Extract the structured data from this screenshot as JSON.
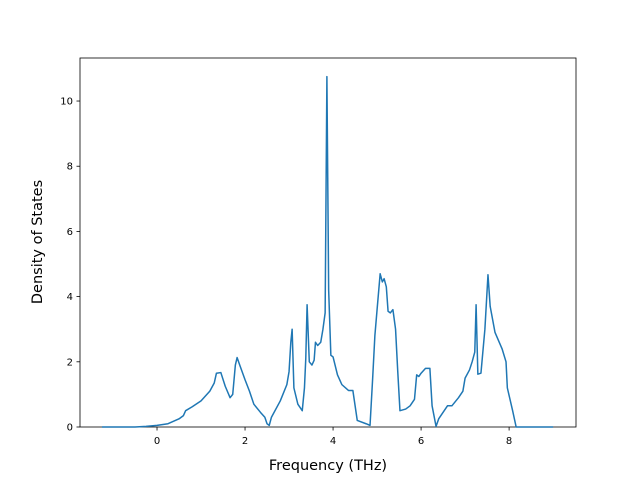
{
  "chart_data": {
    "type": "line",
    "xlabel": "Frequency (THz)",
    "ylabel": "Density of States",
    "color": "#1f77b4",
    "xlim": [
      -1.75,
      9.52
    ],
    "ylim": [
      0,
      11.32
    ],
    "xticks": [
      0,
      2,
      4,
      6,
      8
    ],
    "yticks": [
      0,
      2,
      4,
      6,
      8,
      10
    ],
    "x": [
      -1.25,
      -0.5,
      -0.25,
      0,
      0.25,
      0.5,
      0.6,
      0.65,
      0.8,
      1.0,
      1.2,
      1.3,
      1.35,
      1.45,
      1.55,
      1.66,
      1.72,
      1.78,
      1.82,
      1.88,
      2.0,
      2.1,
      2.2,
      2.35,
      2.45,
      2.5,
      2.55,
      2.6,
      2.8,
      2.95,
      3.0,
      3.04,
      3.07,
      3.11,
      3.2,
      3.3,
      3.35,
      3.38,
      3.41,
      3.46,
      3.52,
      3.57,
      3.6,
      3.65,
      3.72,
      3.77,
      3.82,
      3.86,
      3.9,
      3.95,
      4.0,
      4.1,
      4.2,
      4.35,
      4.45,
      4.55,
      4.75,
      4.84,
      4.9,
      4.95,
      5.0,
      5.07,
      5.12,
      5.16,
      5.21,
      5.25,
      5.3,
      5.36,
      5.42,
      5.47,
      5.52,
      5.65,
      5.75,
      5.85,
      5.9,
      5.95,
      6.0,
      6.1,
      6.2,
      6.25,
      6.34,
      6.4,
      6.6,
      6.7,
      6.85,
      6.95,
      7.0,
      7.1,
      7.16,
      7.22,
      7.25,
      7.29,
      7.36,
      7.45,
      7.52,
      7.57,
      7.68,
      7.84,
      7.93,
      7.96,
      8.08,
      8.16,
      9.0
    ],
    "values": [
      0,
      0,
      0.02,
      0.05,
      0.1,
      0.25,
      0.35,
      0.5,
      0.62,
      0.8,
      1.1,
      1.35,
      1.65,
      1.67,
      1.25,
      0.9,
      1.0,
      1.9,
      2.13,
      1.9,
      1.45,
      1.1,
      0.7,
      0.45,
      0.3,
      0.1,
      0.05,
      0.3,
      0.8,
      1.3,
      1.7,
      2.6,
      3.0,
      1.2,
      0.7,
      0.5,
      1.2,
      2.1,
      3.75,
      2.0,
      1.9,
      2.05,
      2.6,
      2.5,
      2.6,
      3.0,
      3.5,
      10.75,
      4.2,
      2.2,
      2.15,
      1.6,
      1.3,
      1.12,
      1.12,
      0.2,
      0.1,
      0.05,
      1.5,
      2.8,
      3.6,
      4.7,
      4.45,
      4.55,
      4.3,
      3.55,
      3.5,
      3.6,
      3.0,
      1.7,
      0.5,
      0.55,
      0.65,
      0.85,
      1.6,
      1.55,
      1.65,
      1.8,
      1.8,
      0.65,
      0.02,
      0.25,
      0.65,
      0.65,
      0.9,
      1.1,
      1.5,
      1.75,
      2.0,
      2.3,
      3.75,
      1.62,
      1.65,
      3.0,
      4.67,
      3.7,
      2.9,
      2.4,
      2.0,
      1.2,
      0.5,
      0,
      0
    ]
  }
}
